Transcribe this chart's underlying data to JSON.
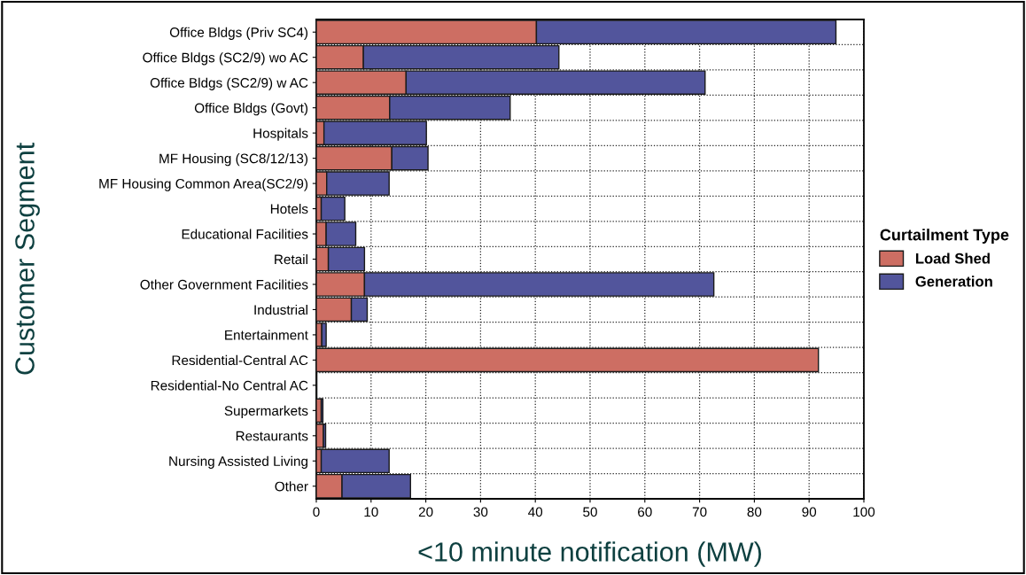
{
  "chart_data": {
    "type": "bar",
    "orientation": "horizontal",
    "stacked": true,
    "xlabel": "<10 minute notification (MW)",
    "ylabel": "Customer Segment",
    "legend_title": "Curtailment Type",
    "categories": [
      "Office Bldgs (Priv SC4)",
      "Office Bldgs (SC2/9) wo AC",
      "Office Bldgs (SC2/9) w AC",
      "Office Bldgs (Govt)",
      "Hospitals",
      "MF Housing (SC8/12/13)",
      "MF Housing Common Area(SC2/9)",
      "Hotels",
      "Educational Facilities",
      "Retail",
      "Other Government Facilities",
      "Industrial",
      "Entertainment",
      "Residential-Central AC",
      "Residential-No Central AC",
      "Supermarkets",
      "Restaurants",
      "Nursing Assisted Living",
      "Other"
    ],
    "series": [
      {
        "name": "Load Shed",
        "color": "#cd6e63",
        "values": [
          40.2,
          8.6,
          16.4,
          13.4,
          1.4,
          13.8,
          1.9,
          0.9,
          1.8,
          2.2,
          8.8,
          6.4,
          1.0,
          91.7,
          0.1,
          0.9,
          1.3,
          0.9,
          4.7
        ]
      },
      {
        "name": "Generation",
        "color": "#52559c",
        "values": [
          54.7,
          35.7,
          54.6,
          22.0,
          18.7,
          6.6,
          11.4,
          4.3,
          5.4,
          6.6,
          63.8,
          2.9,
          0.8,
          0,
          0,
          0.3,
          0.4,
          12.4,
          12.5
        ]
      }
    ],
    "xlim": [
      0,
      100
    ],
    "xticks": [
      0,
      10,
      20,
      30,
      40,
      50,
      60,
      70,
      80,
      90,
      100
    ],
    "grid": true,
    "legend": "right"
  }
}
